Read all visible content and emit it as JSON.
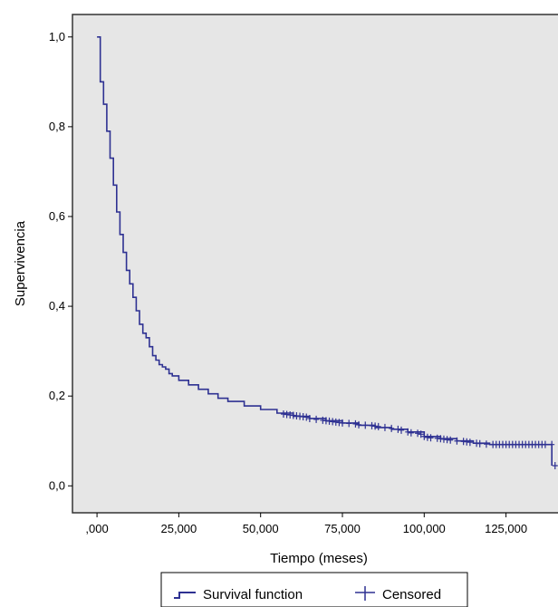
{
  "chart_data": {
    "type": "line",
    "title": "",
    "xlabel": "Tiempo (meses)",
    "ylabel": "Supervivencia",
    "xlim": [
      -7500,
      142000
    ],
    "ylim": [
      -0.06,
      1.05
    ],
    "x_ticks": [
      0,
      25,
      50,
      75,
      100,
      125
    ],
    "x_tick_labels": [
      ",000",
      "25,000",
      "50,000",
      "75,000",
      "100,000",
      "125,000"
    ],
    "y_ticks": [
      0,
      0.2,
      0.4,
      0.6,
      0.8,
      1.0
    ],
    "y_tick_labels": [
      "0,0",
      "0,2",
      "0,4",
      "0,6",
      "0,8",
      "1,0"
    ],
    "grid": false,
    "plot_background": "#e6e6e6",
    "line_color": "#2e3192",
    "legend_position": "bottom",
    "series": [
      {
        "name": "Survival function",
        "x": [
          0,
          1,
          2,
          3,
          4,
          5,
          6,
          7,
          8,
          9,
          10,
          11,
          12,
          13,
          14,
          15,
          16,
          17,
          18,
          19,
          20,
          21,
          22,
          23,
          25,
          28,
          31,
          34,
          37,
          40,
          45,
          50,
          55,
          60,
          65,
          70,
          75,
          80,
          85,
          90,
          95,
          100,
          105,
          110,
          115,
          120,
          125,
          130,
          135,
          139
        ],
        "y": [
          1.0,
          0.9,
          0.85,
          0.79,
          0.73,
          0.67,
          0.61,
          0.56,
          0.52,
          0.48,
          0.45,
          0.42,
          0.39,
          0.36,
          0.34,
          0.33,
          0.31,
          0.29,
          0.28,
          0.27,
          0.265,
          0.26,
          0.25,
          0.245,
          0.235,
          0.225,
          0.215,
          0.205,
          0.195,
          0.188,
          0.178,
          0.17,
          0.162,
          0.155,
          0.15,
          0.145,
          0.14,
          0.135,
          0.13,
          0.126,
          0.12,
          0.11,
          0.105,
          0.1,
          0.095,
          0.092,
          0.092,
          0.092,
          0.092,
          0.092
        ]
      },
      {
        "name": "Censored",
        "x": [
          57,
          58,
          59,
          60,
          61,
          62,
          63,
          64,
          65,
          67,
          69,
          70,
          71,
          72,
          73,
          74,
          75,
          77,
          79,
          80,
          82,
          84,
          85,
          86,
          88,
          90,
          92,
          93,
          95,
          96,
          98,
          99,
          100,
          101,
          102,
          104,
          105,
          106,
          107,
          108,
          110,
          112,
          113,
          114,
          116,
          117,
          119,
          121,
          122,
          123,
          124,
          125,
          126,
          127,
          128,
          129,
          130,
          131,
          132,
          133,
          134,
          135,
          136,
          137,
          139,
          140
        ],
        "y": [
          0.16,
          0.159,
          0.158,
          0.157,
          0.156,
          0.155,
          0.154,
          0.153,
          0.15,
          0.148,
          0.146,
          0.145,
          0.144,
          0.143,
          0.142,
          0.141,
          0.14,
          0.139,
          0.138,
          0.136,
          0.135,
          0.134,
          0.133,
          0.132,
          0.13,
          0.128,
          0.126,
          0.124,
          0.12,
          0.118,
          0.117,
          0.115,
          0.11,
          0.108,
          0.107,
          0.106,
          0.105,
          0.104,
          0.103,
          0.102,
          0.1,
          0.099,
          0.098,
          0.097,
          0.095,
          0.094,
          0.093,
          0.092,
          0.092,
          0.092,
          0.092,
          0.092,
          0.092,
          0.092,
          0.092,
          0.092,
          0.092,
          0.092,
          0.092,
          0.092,
          0.092,
          0.092,
          0.092,
          0.092,
          0.092,
          0.045
        ]
      }
    ]
  }
}
